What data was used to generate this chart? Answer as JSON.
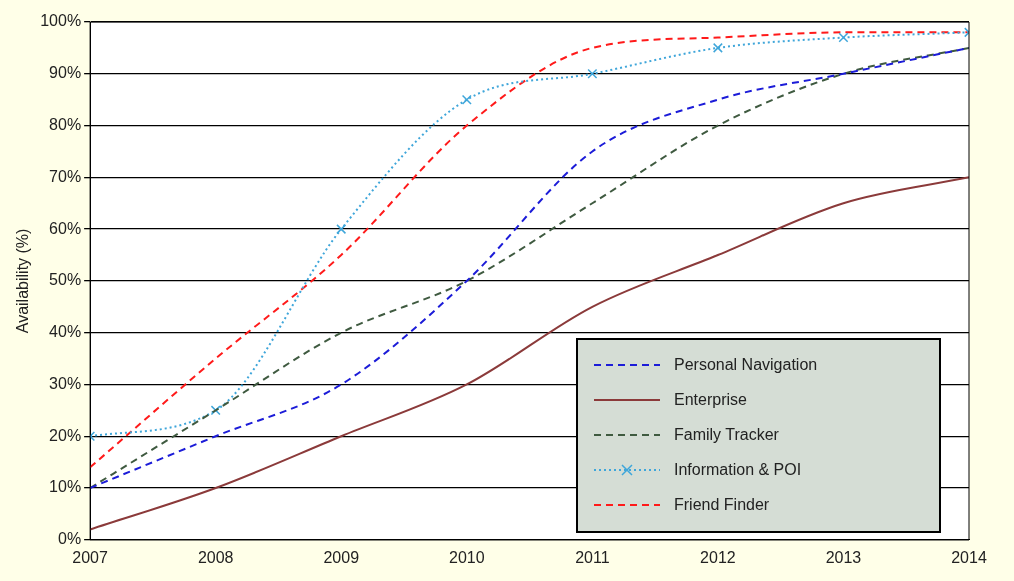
{
  "chart_data": {
    "type": "line",
    "ylabel": "Availability (%)",
    "x": [
      2007,
      2008,
      2009,
      2010,
      2011,
      2012,
      2013,
      2014
    ],
    "xlim": [
      2007,
      2014
    ],
    "xticks": [
      2007,
      2008,
      2009,
      2010,
      2011,
      2012,
      2013,
      2014
    ],
    "ylim": [
      0,
      100
    ],
    "yticks": [
      {
        "value": 0,
        "label": "0%"
      },
      {
        "value": 10,
        "label": "10%"
      },
      {
        "value": 20,
        "label": "20%"
      },
      {
        "value": 30,
        "label": "30%"
      },
      {
        "value": 40,
        "label": "40%"
      },
      {
        "value": 50,
        "label": "50%"
      },
      {
        "value": 60,
        "label": "60%"
      },
      {
        "value": 70,
        "label": "70%"
      },
      {
        "value": 80,
        "label": "80%"
      },
      {
        "value": 90,
        "label": "90%"
      },
      {
        "value": 100,
        "label": "100%"
      }
    ],
    "grid": "y",
    "legend": "bottom right",
    "marker": "none",
    "series": [
      {
        "name": "Personal Navigation",
        "color": "#1c1cd8",
        "line_style": "dashed",
        "values": [
          10,
          20,
          30,
          50,
          75,
          85,
          90,
          95
        ]
      },
      {
        "name": "Enterprise",
        "color": "#8b3a3a",
        "line_style": "solid",
        "values": [
          2,
          10,
          20,
          30,
          45,
          55,
          65,
          70
        ]
      },
      {
        "name": "Family Tracker",
        "color": "#3f5a40",
        "line_style": "dashed",
        "values": [
          10,
          25,
          40,
          50,
          65,
          80,
          90,
          95
        ]
      },
      {
        "name": "Information & POI",
        "color": "#3fa6da",
        "line_style": "dotted",
        "marker": "cross",
        "values": [
          20,
          25,
          60,
          85,
          90,
          95,
          97,
          98
        ]
      },
      {
        "name": "Friend Finder",
        "color": "#ff1a1a",
        "line_style": "dashed",
        "values": [
          14,
          35,
          55,
          80,
          95,
          97,
          98,
          98
        ]
      }
    ]
  }
}
